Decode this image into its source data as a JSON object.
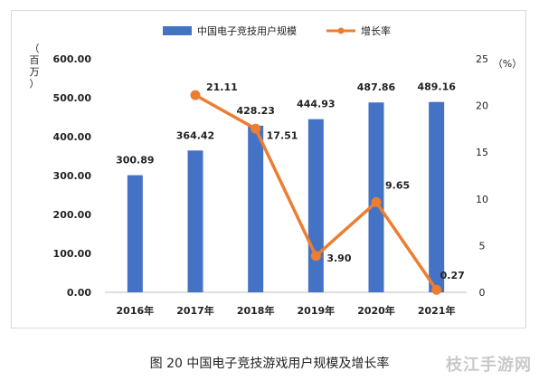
{
  "caption": "图 20 中国电子竞技游戏用户规模及增长率",
  "watermark": "枝江手游网",
  "chart_data": {
    "type": "bar",
    "title": "",
    "categories": [
      "2016年",
      "2017年",
      "2018年",
      "2019年",
      "2020年",
      "2021年"
    ],
    "series": [
      {
        "name": "中国电子竞技用户规模",
        "type": "bar",
        "axis": "left",
        "color": "#4472c4",
        "values": [
          300.89,
          364.42,
          428.23,
          444.93,
          487.86,
          489.16
        ],
        "labels": [
          "300.89",
          "364.42",
          "428.23",
          "444.93",
          "487.86",
          "489.16"
        ]
      },
      {
        "name": "增长率",
        "type": "line",
        "axis": "right",
        "color": "#ed7d31",
        "values": [
          null,
          21.11,
          17.51,
          3.9,
          9.65,
          0.27
        ],
        "labels": [
          "",
          "21.11",
          "17.51",
          "3.90",
          "9.65",
          "0.27"
        ]
      }
    ],
    "y_left": {
      "label": "（百万）",
      "ylim": [
        0,
        600
      ],
      "ticks": [
        "0.00",
        "100.00",
        "200.00",
        "300.00",
        "400.00",
        "500.00",
        "600.00"
      ]
    },
    "y_right": {
      "label": "（%）",
      "ylim": [
        0,
        25
      ],
      "ticks": [
        "0",
        "5",
        "10",
        "15",
        "20",
        "25"
      ]
    },
    "legend_position": "top",
    "grid": false
  }
}
